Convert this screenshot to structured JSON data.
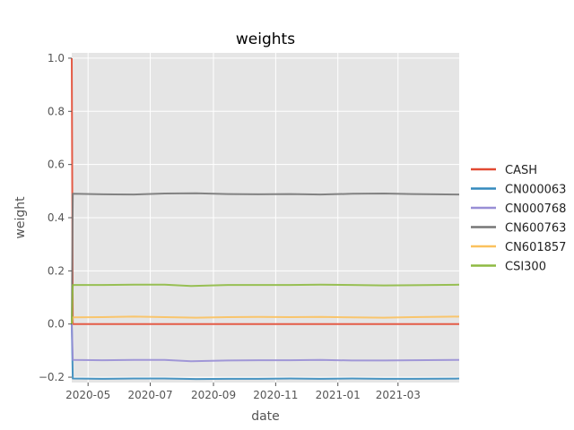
{
  "chart_data": {
    "type": "line",
    "title": "weights",
    "xlabel": "date",
    "ylabel": "weight",
    "xlim": [
      "2020-04-15",
      "2021-04-30"
    ],
    "ylim": [
      -0.22,
      1.02
    ],
    "x_ticks": [
      "2020-05-01",
      "2020-07-01",
      "2020-09-01",
      "2020-11-01",
      "2021-01-01",
      "2021-03-01"
    ],
    "x_tick_labels": [
      "2020-05",
      "2020-07",
      "2020-09",
      "2020-11",
      "2021-01",
      "2021-03"
    ],
    "y_ticks": [
      -0.2,
      0.0,
      0.2,
      0.4,
      0.6,
      0.8,
      1.0
    ],
    "y_tick_labels": [
      "−0.2",
      "0.0",
      "0.2",
      "0.4",
      "0.6",
      "0.8",
      "1.0"
    ],
    "grid": true,
    "legend_position": "right",
    "background": "#e5e5e5",
    "series": [
      {
        "name": "CASH",
        "color": "#e24a33",
        "x": [
          "2020-04-15",
          "2020-04-16",
          "2020-06-01",
          "2020-08-01",
          "2020-10-01",
          "2020-12-01",
          "2021-02-01",
          "2021-04-30"
        ],
        "values": [
          1.0,
          0.0,
          0.0,
          0.0,
          0.0,
          0.0,
          0.0,
          0.0
        ]
      },
      {
        "name": "CN000063",
        "color": "#348abd",
        "x": [
          "2020-04-15",
          "2020-04-16",
          "2020-05-15",
          "2020-06-15",
          "2020-07-15",
          "2020-08-15",
          "2020-09-15",
          "2020-10-15",
          "2020-11-15",
          "2020-12-15",
          "2021-01-15",
          "2021-02-15",
          "2021-03-15",
          "2021-04-30"
        ],
        "values": [
          0.0,
          -0.205,
          -0.206,
          -0.205,
          -0.205,
          -0.207,
          -0.206,
          -0.206,
          -0.205,
          -0.206,
          -0.205,
          -0.206,
          -0.206,
          -0.205
        ]
      },
      {
        "name": "CN000768",
        "color": "#988ed5",
        "x": [
          "2020-04-15",
          "2020-04-16",
          "2020-05-15",
          "2020-06-15",
          "2020-07-15",
          "2020-08-10",
          "2020-09-15",
          "2020-10-15",
          "2020-11-15",
          "2020-12-15",
          "2021-01-15",
          "2021-02-15",
          "2021-03-15",
          "2021-04-30"
        ],
        "values": [
          0.0,
          -0.135,
          -0.136,
          -0.135,
          -0.135,
          -0.14,
          -0.137,
          -0.136,
          -0.136,
          -0.135,
          -0.137,
          -0.137,
          -0.136,
          -0.135
        ]
      },
      {
        "name": "CN600763",
        "color": "#777777",
        "x": [
          "2020-04-15",
          "2020-04-16",
          "2020-05-15",
          "2020-06-15",
          "2020-07-15",
          "2020-08-15",
          "2020-09-15",
          "2020-10-15",
          "2020-11-15",
          "2020-12-15",
          "2021-01-15",
          "2021-02-15",
          "2021-03-15",
          "2021-04-30"
        ],
        "values": [
          0.0,
          0.49,
          0.488,
          0.487,
          0.491,
          0.492,
          0.489,
          0.488,
          0.489,
          0.487,
          0.49,
          0.491,
          0.489,
          0.487
        ]
      },
      {
        "name": "CN601857",
        "color": "#fbc15e",
        "x": [
          "2020-04-15",
          "2020-04-16",
          "2020-05-15",
          "2020-06-15",
          "2020-07-15",
          "2020-08-15",
          "2020-09-15",
          "2020-10-15",
          "2020-11-15",
          "2020-12-15",
          "2021-01-15",
          "2021-02-15",
          "2021-03-15",
          "2021-04-30"
        ],
        "values": [
          0.0,
          0.025,
          0.026,
          0.028,
          0.026,
          0.024,
          0.026,
          0.027,
          0.026,
          0.027,
          0.025,
          0.024,
          0.026,
          0.028
        ]
      },
      {
        "name": "CSI300",
        "color": "#8eba42",
        "x": [
          "2020-04-15",
          "2020-04-16",
          "2020-05-15",
          "2020-06-15",
          "2020-07-15",
          "2020-08-10",
          "2020-09-15",
          "2020-10-15",
          "2020-11-15",
          "2020-12-15",
          "2021-01-15",
          "2021-02-15",
          "2021-03-15",
          "2021-04-30"
        ],
        "values": [
          0.0,
          0.147,
          0.147,
          0.148,
          0.148,
          0.143,
          0.147,
          0.147,
          0.147,
          0.148,
          0.147,
          0.145,
          0.146,
          0.148
        ]
      }
    ]
  }
}
